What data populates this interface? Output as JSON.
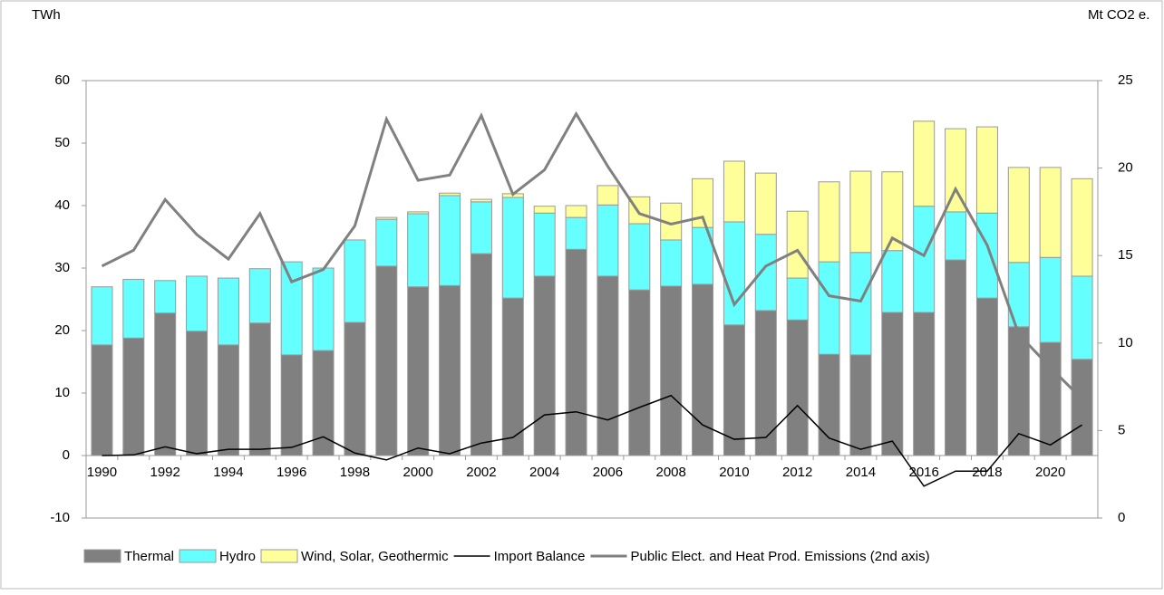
{
  "chart_data": {
    "type": "bar",
    "y_label": "TWh",
    "y2_label": "Mt CO2 e.",
    "categories": [
      "1990",
      null,
      "1992",
      null,
      "1994",
      null,
      "1996",
      null,
      "1998",
      null,
      "2000",
      null,
      "2002",
      null,
      "2004",
      null,
      "2006",
      null,
      "2008",
      null,
      "2010",
      null,
      "2012",
      null,
      "2014",
      null,
      "2016",
      null,
      "2018",
      null,
      "2020",
      null
    ],
    "ylim": [
      -10,
      60
    ],
    "yticks": [
      -10,
      0,
      10,
      20,
      30,
      40,
      50,
      60
    ],
    "y2lim": [
      0,
      25
    ],
    "y2ticks": [
      0,
      5,
      10,
      15,
      20,
      25
    ],
    "stacked": true,
    "legend": "bottom",
    "series": [
      {
        "name": "Thermal",
        "color": "#808080",
        "values": [
          17.7,
          18.8,
          22.8,
          19.9,
          17.7,
          21.2,
          16.1,
          16.8,
          21.3,
          30.3,
          27.0,
          27.2,
          32.3,
          25.2,
          28.7,
          33.0,
          28.7,
          26.5,
          27.1,
          27.4,
          20.9,
          23.2,
          21.7,
          16.2,
          16.1,
          22.9,
          22.9,
          31.3,
          25.2,
          20.6,
          18.1,
          15.4
        ]
      },
      {
        "name": "Hydro",
        "color": "#66ffff",
        "values": [
          9.3,
          9.4,
          5.2,
          8.8,
          10.7,
          8.7,
          14.9,
          13.2,
          13.2,
          7.5,
          11.7,
          14.4,
          8.3,
          16.1,
          10.1,
          5.1,
          11.4,
          10.6,
          7.4,
          9.1,
          16.5,
          12.2,
          6.7,
          14.8,
          16.4,
          9.9,
          17.0,
          7.7,
          13.6,
          10.3,
          13.6,
          13.3
        ]
      },
      {
        "name": "Wind, Solar, Geothermic",
        "color": "#ffff99",
        "values": [
          0,
          0,
          0,
          0,
          0,
          0,
          0,
          0,
          0,
          0.3,
          0.3,
          0.4,
          0.4,
          0.6,
          1.1,
          1.9,
          3.1,
          4.3,
          5.9,
          7.8,
          9.7,
          9.8,
          10.7,
          12.8,
          13.0,
          12.6,
          13.6,
          13.3,
          13.8,
          15.2,
          14.4,
          15.6
        ]
      },
      {
        "name": "Import Balance",
        "type": "line",
        "color": "#000000",
        "values": [
          0.0,
          0.1,
          1.4,
          0.3,
          1.0,
          1.0,
          1.3,
          3.0,
          0.4,
          -0.7,
          1.2,
          0.3,
          2.0,
          2.9,
          6.5,
          7.0,
          5.7,
          7.7,
          9.6,
          4.9,
          2.6,
          2.9,
          8.0,
          2.8,
          1.0,
          2.3,
          -4.9,
          -2.5,
          -2.5,
          3.5,
          1.7,
          4.9
        ]
      },
      {
        "name": "Public Elect. and Heat Prod. Emissions (2nd axis)",
        "type": "line",
        "axis": "y2",
        "color": "#808080",
        "values": [
          14.4,
          15.3,
          18.2,
          16.2,
          14.8,
          17.4,
          13.5,
          14.2,
          16.7,
          22.8,
          19.3,
          19.6,
          23.0,
          18.5,
          19.9,
          23.1,
          20.1,
          17.4,
          16.8,
          17.2,
          12.2,
          14.4,
          15.3,
          12.7,
          12.4,
          16.0,
          15.0,
          18.8,
          15.6,
          10.5,
          8.6,
          6.8
        ]
      }
    ]
  }
}
